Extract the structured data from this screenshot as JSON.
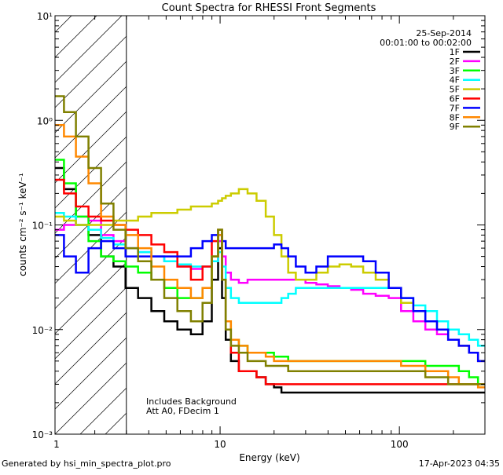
{
  "chart_data": {
    "type": "line",
    "title": "Count Spectra for RHESSI Front Segments",
    "xlabel": "Energy (keV)",
    "ylabel": "counts cm⁻² s⁻¹ keV⁻¹",
    "xscale": "log",
    "yscale": "log",
    "xlim": [
      1.2,
      300
    ],
    "ylim": [
      0.001,
      10
    ],
    "x_ticks": [
      {
        "value": 1,
        "label": "1"
      },
      {
        "value": 10,
        "label": "10"
      },
      {
        "value": 100,
        "label": "100"
      }
    ],
    "y_ticks": [
      {
        "value": 10,
        "label": "10¹"
      },
      {
        "value": 1,
        "label": "10⁰"
      },
      {
        "value": 0.1,
        "label": "10⁻¹"
      },
      {
        "value": 0.01,
        "label": "10⁻²"
      },
      {
        "value": 0.001,
        "label": "10⁻³"
      }
    ],
    "hatched_region": {
      "x_from": 1.2,
      "x_to": 3
    },
    "legend_header": {
      "date": "25-Sep-2014",
      "time_range": "00:01:00 to 00:02:00"
    },
    "annotations": [
      "Includes Background",
      "Att A0, FDecim 1"
    ],
    "footer_left": "Generated by hsi_min_spectra_plot.pro",
    "footer_right": "17-Apr-2023 04:35",
    "x": [
      1.25,
      1.45,
      1.7,
      2.0,
      2.35,
      2.75,
      3.2,
      3.8,
      4.5,
      5.3,
      6.3,
      7.5,
      8.5,
      9.5,
      10.0,
      10.5,
      11.0,
      12.0,
      13.5,
      15,
      17,
      19,
      21,
      23,
      25,
      28,
      32,
      37,
      43,
      50,
      58,
      68,
      80,
      95,
      110,
      130,
      150,
      175,
      200,
      230,
      260,
      290
    ],
    "series": [
      {
        "name": "1F",
        "color": "#000000",
        "values": [
          0.35,
          0.22,
          0.1,
          0.08,
          0.05,
          0.04,
          0.025,
          0.02,
          0.015,
          0.012,
          0.01,
          0.009,
          0.012,
          0.03,
          0.06,
          0.02,
          0.008,
          0.005,
          0.004,
          0.004,
          0.0035,
          0.003,
          0.0028,
          0.0025,
          0.0025,
          0.0025,
          0.0025,
          0.0025,
          0.0025,
          0.0025,
          0.0025,
          0.0025,
          0.0025,
          0.0025,
          0.0025,
          0.0025,
          0.0025,
          0.0025,
          0.0025,
          0.0025,
          0.0025,
          0.0025
        ]
      },
      {
        "name": "2F",
        "color": "#ff00ff",
        "values": [
          0.09,
          0.1,
          0.12,
          0.11,
          0.08,
          0.07,
          0.06,
          0.055,
          0.05,
          0.045,
          0.04,
          0.038,
          0.04,
          0.045,
          0.07,
          0.05,
          0.035,
          0.03,
          0.028,
          0.03,
          0.03,
          0.03,
          0.03,
          0.03,
          0.03,
          0.03,
          0.028,
          0.027,
          0.026,
          0.025,
          0.024,
          0.022,
          0.021,
          0.02,
          0.015,
          0.012,
          0.01,
          0.009,
          0.008,
          0.007,
          0.006,
          0.005
        ]
      },
      {
        "name": "3F",
        "color": "#00ff00",
        "values": [
          0.42,
          0.25,
          0.12,
          0.07,
          0.05,
          0.045,
          0.04,
          0.035,
          0.03,
          0.025,
          0.02,
          0.02,
          0.025,
          0.05,
          0.09,
          0.03,
          0.012,
          0.008,
          0.007,
          0.006,
          0.006,
          0.006,
          0.0055,
          0.0055,
          0.005,
          0.005,
          0.005,
          0.005,
          0.005,
          0.005,
          0.005,
          0.005,
          0.005,
          0.005,
          0.005,
          0.005,
          0.0045,
          0.0045,
          0.0045,
          0.004,
          0.0035,
          0.003
        ]
      },
      {
        "name": "4F",
        "color": "#00ffff",
        "values": [
          0.13,
          0.12,
          0.1,
          0.09,
          0.075,
          0.065,
          0.06,
          0.055,
          0.05,
          0.045,
          0.042,
          0.04,
          0.04,
          0.045,
          0.055,
          0.04,
          0.025,
          0.02,
          0.018,
          0.018,
          0.018,
          0.018,
          0.018,
          0.02,
          0.022,
          0.025,
          0.025,
          0.025,
          0.025,
          0.025,
          0.025,
          0.025,
          0.025,
          0.025,
          0.02,
          0.017,
          0.015,
          0.012,
          0.01,
          0.009,
          0.008,
          0.007
        ]
      },
      {
        "name": "5F",
        "color": "#cccc00",
        "values": [
          0.12,
          0.11,
          0.1,
          0.1,
          0.1,
          0.11,
          0.11,
          0.12,
          0.13,
          0.13,
          0.14,
          0.15,
          0.15,
          0.16,
          0.17,
          0.18,
          0.19,
          0.2,
          0.22,
          0.2,
          0.17,
          0.12,
          0.08,
          0.05,
          0.035,
          0.03,
          0.03,
          0.035,
          0.04,
          0.042,
          0.04,
          0.035,
          0.03,
          0.025,
          0.018,
          0.015,
          0.012,
          0.01,
          0.008,
          0.007,
          0.006,
          0.005
        ]
      },
      {
        "name": "6F",
        "color": "#ff0000",
        "values": [
          0.27,
          0.2,
          0.15,
          0.12,
          0.11,
          0.1,
          0.09,
          0.08,
          0.065,
          0.055,
          0.04,
          0.03,
          0.04,
          0.07,
          0.09,
          0.03,
          0.01,
          0.006,
          0.004,
          0.004,
          0.0035,
          0.003,
          0.003,
          0.003,
          0.003,
          0.003,
          0.003,
          0.003,
          0.003,
          0.003,
          0.003,
          0.003,
          0.003,
          0.003,
          0.003,
          0.003,
          0.003,
          0.003,
          0.003,
          0.003,
          0.003,
          0.003
        ]
      },
      {
        "name": "7F",
        "color": "#0000ff",
        "values": [
          0.08,
          0.05,
          0.035,
          0.06,
          0.07,
          0.06,
          0.05,
          0.05,
          0.05,
          0.05,
          0.05,
          0.06,
          0.07,
          0.08,
          0.08,
          0.07,
          0.06,
          0.06,
          0.06,
          0.06,
          0.06,
          0.06,
          0.065,
          0.06,
          0.05,
          0.04,
          0.035,
          0.04,
          0.05,
          0.05,
          0.05,
          0.045,
          0.035,
          0.025,
          0.02,
          0.015,
          0.012,
          0.01,
          0.008,
          0.007,
          0.006,
          0.005
        ]
      },
      {
        "name": "8F",
        "color": "#ff8800",
        "values": [
          0.9,
          0.7,
          0.45,
          0.25,
          0.12,
          0.1,
          0.08,
          0.06,
          0.04,
          0.03,
          0.025,
          0.02,
          0.025,
          0.05,
          0.08,
          0.03,
          0.012,
          0.008,
          0.007,
          0.006,
          0.006,
          0.0055,
          0.005,
          0.005,
          0.005,
          0.005,
          0.005,
          0.005,
          0.005,
          0.005,
          0.005,
          0.005,
          0.005,
          0.005,
          0.0045,
          0.0045,
          0.004,
          0.004,
          0.0035,
          0.003,
          0.003,
          0.0028
        ]
      },
      {
        "name": "9F",
        "color": "#808000",
        "values": [
          1.7,
          1.2,
          0.7,
          0.35,
          0.16,
          0.09,
          0.06,
          0.045,
          0.03,
          0.02,
          0.015,
          0.012,
          0.018,
          0.05,
          0.09,
          0.03,
          0.01,
          0.007,
          0.006,
          0.005,
          0.005,
          0.0045,
          0.0045,
          0.0045,
          0.004,
          0.004,
          0.004,
          0.004,
          0.004,
          0.004,
          0.004,
          0.004,
          0.004,
          0.004,
          0.004,
          0.004,
          0.0035,
          0.0035,
          0.003,
          0.003,
          0.003,
          0.003
        ]
      }
    ]
  }
}
